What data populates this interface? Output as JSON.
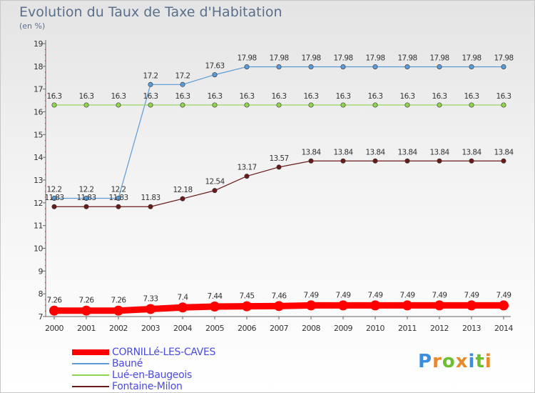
{
  "header": {
    "title": "Evolution du Taux de Taxe d'Habitation",
    "subtitle": "(en %)"
  },
  "chart_data": {
    "type": "line",
    "title": "Evolution du Taux de Taxe d'Habitation",
    "ylabel": "(en %)",
    "xlabel": "",
    "ylim": [
      7,
      19
    ],
    "yticks": [
      7,
      8,
      9,
      10,
      11,
      12,
      13,
      14,
      15,
      16,
      17,
      18,
      19
    ],
    "categories": [
      "2000",
      "2001",
      "2002",
      "2003",
      "2004",
      "2005",
      "2006",
      "2007",
      "2008",
      "2009",
      "2010",
      "2011",
      "2012",
      "2013",
      "2014"
    ],
    "grid": false,
    "legend_position": "bottom-left",
    "series": [
      {
        "name": "CORNILLé-LES-CAVES",
        "color": "#ff0000",
        "emphasis": true,
        "values": [
          7.26,
          7.26,
          7.26,
          7.33,
          7.4,
          7.44,
          7.45,
          7.46,
          7.49,
          7.49,
          7.49,
          7.49,
          7.49,
          7.49,
          7.49
        ]
      },
      {
        "name": "Bauné",
        "color": "#5b9bd5",
        "values": [
          12.2,
          12.2,
          12.2,
          17.2,
          17.2,
          17.63,
          17.98,
          17.98,
          17.98,
          17.98,
          17.98,
          17.98,
          17.98,
          17.98,
          17.98
        ]
      },
      {
        "name": "Lué-en-Baugeois",
        "color": "#8fd34f",
        "values": [
          16.3,
          16.3,
          16.3,
          16.3,
          16.3,
          16.3,
          16.3,
          16.3,
          16.3,
          16.3,
          16.3,
          16.3,
          16.3,
          16.3,
          16.3
        ]
      },
      {
        "name": "Fontaine-Milon",
        "color": "#6b1a1a",
        "values": [
          11.83,
          11.83,
          11.83,
          11.83,
          12.18,
          12.54,
          13.17,
          13.57,
          13.84,
          13.84,
          13.84,
          13.84,
          13.84,
          13.84,
          13.84
        ]
      }
    ]
  },
  "logo": {
    "text": "Proxiti"
  }
}
